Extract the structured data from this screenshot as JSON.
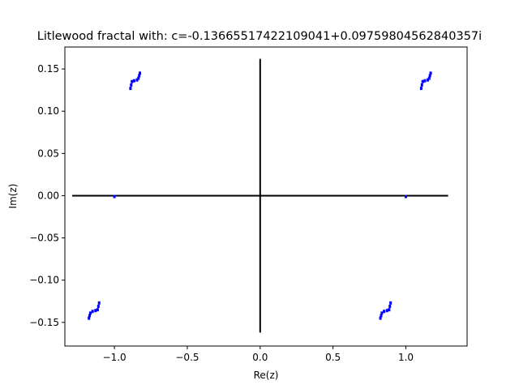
{
  "chart_data": {
    "type": "scatter",
    "title": "Litlewood fractal with: c=-0.13665517422109041+0.09759804562840357i",
    "xlabel": "Re(z)",
    "ylabel": "Im(z)",
    "xlim": [
      -1.34,
      1.42
    ],
    "ylim": [
      -0.178,
      0.176
    ],
    "xticks": [
      -1.0,
      -0.5,
      0.0,
      0.5,
      1.0
    ],
    "xtick_labels": [
      "−1.0",
      "−0.5",
      "0.0",
      "0.5",
      "1.0"
    ],
    "yticks": [
      -0.15,
      -0.1,
      -0.05,
      0.0,
      0.05,
      0.1,
      0.15
    ],
    "ytick_labels": [
      "−0.15",
      "−0.10",
      "−0.05",
      "0.00",
      "0.05",
      "0.10",
      "0.15"
    ],
    "grid": false,
    "point_color": "#0000ff",
    "line_color": "#000000",
    "reference_lines": [
      {
        "x": [
          -1.29,
          1.29
        ],
        "y": [
          0,
          0
        ]
      },
      {
        "x": [
          0,
          0
        ],
        "y": [
          -0.162,
          0.162
        ]
      }
    ],
    "clusters": [
      {
        "x": [
          -0.89,
          -0.885,
          -0.88,
          -0.865,
          -0.845,
          -0.835,
          -0.83,
          -0.825
        ],
        "y": [
          0.127,
          0.131,
          0.135,
          0.136,
          0.137,
          0.139,
          0.142,
          0.145
        ]
      },
      {
        "x": [
          1.105,
          1.11,
          1.115,
          1.13,
          1.15,
          1.16,
          1.165,
          1.17
        ],
        "y": [
          0.127,
          0.131,
          0.135,
          0.136,
          0.137,
          0.139,
          0.142,
          0.145
        ]
      },
      {
        "x": [
          -1.175,
          -1.17,
          -1.165,
          -1.15,
          -1.13,
          -1.115,
          -1.11,
          -1.105
        ],
        "y": [
          -0.145,
          -0.142,
          -0.139,
          -0.137,
          -0.136,
          -0.135,
          -0.131,
          -0.127
        ]
      },
      {
        "x": [
          0.825,
          0.83,
          0.835,
          0.85,
          0.87,
          0.885,
          0.89,
          0.895
        ],
        "y": [
          -0.145,
          -0.142,
          -0.139,
          -0.137,
          -0.136,
          -0.135,
          -0.131,
          -0.127
        ]
      },
      {
        "x": [
          -1.0,
          1.0
        ],
        "y": [
          -0.001,
          -0.001
        ]
      }
    ]
  }
}
